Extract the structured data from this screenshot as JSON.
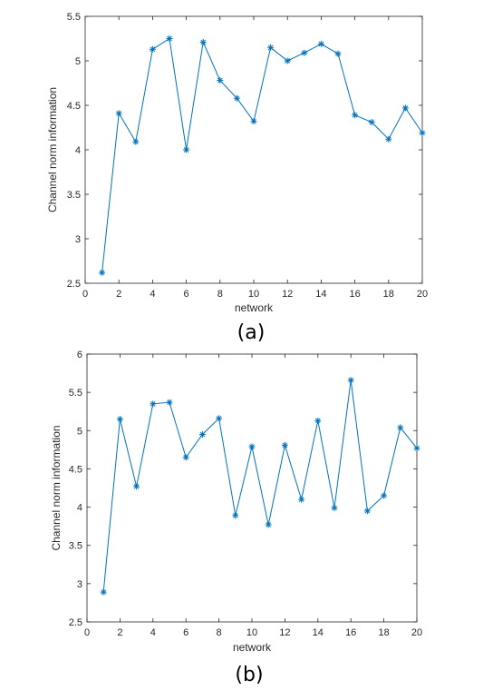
{
  "chart_data": [
    {
      "type": "line",
      "caption": "(a)",
      "xlabel": "network",
      "ylabel": "Channel norm information",
      "xlim": [
        0,
        20
      ],
      "ylim": [
        2.5,
        5.5
      ],
      "xticks": [
        0,
        2,
        4,
        6,
        8,
        10,
        12,
        14,
        16,
        18,
        20
      ],
      "yticks": [
        2.5,
        3,
        3.5,
        4,
        4.5,
        5,
        5.5
      ],
      "xtick_labels": [
        "0",
        "2",
        "4",
        "6",
        "8",
        "10",
        "12",
        "14",
        "16",
        "18",
        "20"
      ],
      "ytick_labels": [
        "2.5",
        "3",
        "3.5",
        "4",
        "4.5",
        "5",
        "5.5"
      ],
      "grid": false,
      "marker": "asterisk",
      "color": "#0072BD",
      "x": [
        1,
        2,
        3,
        4,
        5,
        6,
        7,
        8,
        9,
        10,
        11,
        12,
        13,
        14,
        15,
        16,
        17,
        18,
        19,
        20
      ],
      "values": [
        2.62,
        4.41,
        4.09,
        5.13,
        5.25,
        4.0,
        5.21,
        4.78,
        4.58,
        4.32,
        5.15,
        5.0,
        5.09,
        5.19,
        5.08,
        4.39,
        4.31,
        4.12,
        4.47,
        4.19
      ]
    },
    {
      "type": "line",
      "caption": "(b)",
      "xlabel": "network",
      "ylabel": "Channel norm information",
      "xlim": [
        0,
        20
      ],
      "ylim": [
        2.5,
        6
      ],
      "xticks": [
        0,
        2,
        4,
        6,
        8,
        10,
        12,
        14,
        16,
        18,
        20
      ],
      "yticks": [
        2.5,
        3,
        3.5,
        4,
        4.5,
        5,
        5.5,
        6
      ],
      "xtick_labels": [
        "0",
        "2",
        "4",
        "6",
        "8",
        "10",
        "12",
        "14",
        "16",
        "18",
        "20"
      ],
      "ytick_labels": [
        "2.5",
        "3",
        "3.5",
        "4",
        "4.5",
        "5",
        "5.5",
        "6"
      ],
      "grid": false,
      "marker": "asterisk",
      "color": "#0072BD",
      "x": [
        1,
        2,
        3,
        4,
        5,
        6,
        7,
        8,
        9,
        10,
        11,
        12,
        13,
        14,
        15,
        16,
        17,
        18,
        19,
        20
      ],
      "values": [
        2.89,
        5.15,
        4.27,
        5.35,
        5.37,
        4.65,
        4.95,
        5.16,
        3.89,
        4.79,
        3.77,
        4.81,
        4.1,
        5.13,
        3.99,
        5.66,
        3.95,
        4.15,
        5.04,
        4.77
      ]
    }
  ]
}
